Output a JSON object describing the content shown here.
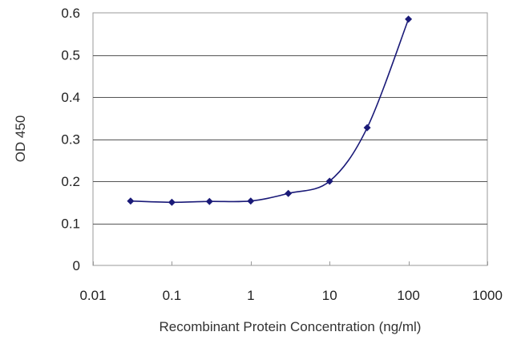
{
  "chart_data": {
    "type": "scatter",
    "title": "",
    "xlabel": "Recombinant Protein Concentration (ng/ml)",
    "ylabel": "OD 450",
    "x_scale": "log",
    "xlim": [
      0.01,
      1000
    ],
    "ylim": [
      0,
      0.6
    ],
    "x_ticks": [
      "0.01",
      "0.1",
      "1",
      "10",
      "100",
      "1000"
    ],
    "y_ticks": [
      "0",
      "0.1",
      "0.2",
      "0.3",
      "0.4",
      "0.5",
      "0.6"
    ],
    "grid": "horizontal",
    "legend": "none",
    "fit_line": true,
    "series": [
      {
        "color": "#1a1a78",
        "marker": "diamond",
        "points": [
          {
            "x": 0.03,
            "y": 0.153
          },
          {
            "x": 0.1,
            "y": 0.15
          },
          {
            "x": 0.3,
            "y": 0.152
          },
          {
            "x": 1,
            "y": 0.153
          },
          {
            "x": 3,
            "y": 0.171
          },
          {
            "x": 10,
            "y": 0.2
          },
          {
            "x": 30,
            "y": 0.327
          },
          {
            "x": 100,
            "y": 0.585
          }
        ]
      }
    ],
    "colors": {
      "plot_background": "#ffffff",
      "plot_border": "#9a9a9a",
      "gridline": "#555555"
    }
  }
}
